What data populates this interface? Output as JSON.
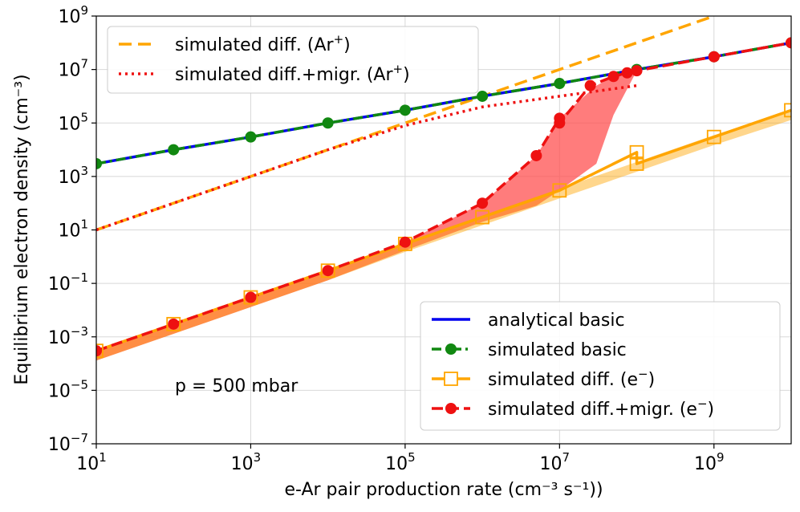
{
  "chart_data": {
    "type": "line",
    "xscale": "log",
    "yscale": "log",
    "xlim": [
      10,
      10000000000
    ],
    "ylim": [
      1e-07,
      1000000000
    ],
    "xlabel": "e-Ar pair production rate (cm⁻³ s⁻¹))",
    "ylabel": "Equilibrium electron density (cm⁻³)",
    "grid": true,
    "annotation": "p =  500 mbar",
    "xticks": [
      {
        "value": 10,
        "base": "10",
        "exp": "1"
      },
      {
        "value": 1000,
        "base": "10",
        "exp": "3"
      },
      {
        "value": 100000,
        "base": "10",
        "exp": "5"
      },
      {
        "value": 10000000,
        "base": "10",
        "exp": "7"
      },
      {
        "value": 1000000000,
        "base": "10",
        "exp": "9"
      }
    ],
    "yticks": [
      {
        "value": 1e-07,
        "base": "10",
        "exp": "−7"
      },
      {
        "value": 1e-05,
        "base": "10",
        "exp": "−5"
      },
      {
        "value": 0.001,
        "base": "10",
        "exp": "−3"
      },
      {
        "value": 0.1,
        "base": "10",
        "exp": "−1"
      },
      {
        "value": 10,
        "base": "10",
        "exp": "1"
      },
      {
        "value": 1000,
        "base": "10",
        "exp": "3"
      },
      {
        "value": 100000,
        "base": "10",
        "exp": "5"
      },
      {
        "value": 10000000,
        "base": "10",
        "exp": "7"
      },
      {
        "value": 1000000000,
        "base": "10",
        "exp": "9"
      }
    ],
    "bands": [
      {
        "name": "diff-migr-band",
        "color": "#ff5050",
        "opacity": 0.75,
        "x": [
          10,
          100,
          1000,
          10000,
          100000,
          1000000,
          5000000,
          10000000,
          30000000,
          50000000,
          100000000
        ],
        "upper": [
          0.0003,
          0.003,
          0.03,
          0.3,
          3.5,
          100,
          6000,
          150000,
          2500000,
          5500000,
          9000000
        ],
        "lower": [
          0.00013,
          0.0013,
          0.013,
          0.13,
          1.7,
          20,
          80,
          300,
          3000,
          200000,
          9000000
        ]
      },
      {
        "name": "diff-band",
        "color": "#ffa500",
        "opacity": 0.45,
        "x": [
          10,
          100,
          1000,
          10000,
          100000,
          1000000,
          10000000,
          100000000,
          1000000000,
          10000000000
        ],
        "upper": [
          0.0003,
          0.003,
          0.03,
          0.3,
          3.5,
          35,
          350,
          3500,
          35000,
          300000
        ],
        "lower": [
          0.00013,
          0.0013,
          0.013,
          0.13,
          1.5,
          15,
          150,
          1500,
          15000,
          130000
        ]
      }
    ],
    "series": [
      {
        "name": "simulated diff. (Ar⁺)",
        "label_base": "simulated diff. (Ar",
        "label_sup": "+",
        "label_tail": ")",
        "color": "#ffa500",
        "dash": "16,8",
        "marker": "none",
        "legend": "top-left",
        "x": [
          10,
          100,
          1000,
          10000,
          100000,
          1000000,
          10000000,
          100000000,
          1000000000
        ],
        "y": [
          10,
          100,
          1000,
          10000,
          100000,
          1000000,
          10000000,
          100000000,
          1000000000
        ]
      },
      {
        "name": "simulated diff.+migr. (Ar⁺)",
        "label_base": "simulated diff.+migr. (Ar",
        "label_sup": "+",
        "label_tail": ")",
        "color": "#ee1111",
        "dash": "3,5",
        "marker": "none",
        "legend": "top-left",
        "x": [
          10,
          100,
          1000,
          10000,
          100000,
          1000000,
          10000000,
          100000000
        ],
        "y": [
          10,
          100,
          1000,
          10000,
          80000,
          400000,
          1000000,
          2500000
        ]
      },
      {
        "name": "analytical basic",
        "label_base": "analytical basic",
        "label_sup": "",
        "label_tail": "",
        "color": "#0000ee",
        "dash": "",
        "marker": "none",
        "legend": "bottom-right",
        "x": [
          10,
          100,
          1000,
          10000,
          100000,
          1000000,
          10000000,
          100000000,
          1000000000,
          10000000000
        ],
        "y": [
          3000,
          10000,
          30000,
          100000,
          300000,
          1000000,
          3000000,
          10000000,
          30000000,
          100000000
        ]
      },
      {
        "name": "simulated basic",
        "label_base": "simulated basic",
        "label_sup": "",
        "label_tail": "",
        "color": "#118811",
        "dash": "12,5,3,5",
        "marker": "circle",
        "legend": "bottom-right",
        "x": [
          10,
          100,
          1000,
          10000,
          100000,
          1000000,
          10000000,
          100000000,
          1000000000,
          10000000000
        ],
        "y": [
          3000,
          10000,
          30000,
          100000,
          300000,
          1000000,
          3000000,
          10000000,
          30000000,
          100000000
        ]
      },
      {
        "name": "simulated diff. (e⁻)",
        "label_base": "simulated diff. (e",
        "label_sup": "−",
        "label_tail": ")",
        "color": "#ffa500",
        "dash": "",
        "marker": "square",
        "legend": "bottom-right",
        "x": [
          10,
          100,
          1000,
          10000,
          100000,
          1000000,
          10000000,
          100000000,
          100000000,
          1000000000,
          10000000000
        ],
        "y": [
          0.0003,
          0.003,
          0.03,
          0.3,
          3,
          30,
          300,
          8000,
          3000,
          30000,
          300000
        ]
      },
      {
        "name": "simulated diff.+migr. (e⁻)",
        "label_base": "simulated diff.+migr. (e",
        "label_sup": "−",
        "label_tail": ")",
        "color": "#ee1111",
        "dash": "14,6",
        "marker": "circle",
        "legend": "bottom-right",
        "x": [
          10,
          100,
          1000,
          10000,
          100000,
          1000000,
          5000000,
          10000000,
          10000000,
          25000000,
          50000000,
          75000000,
          100000000,
          1000000000,
          10000000000
        ],
        "y": [
          0.0003,
          0.003,
          0.03,
          0.3,
          3.5,
          100,
          6000,
          150000,
          100000,
          2500000,
          5500000,
          7500000,
          9000000,
          30000000,
          100000000
        ]
      }
    ]
  }
}
